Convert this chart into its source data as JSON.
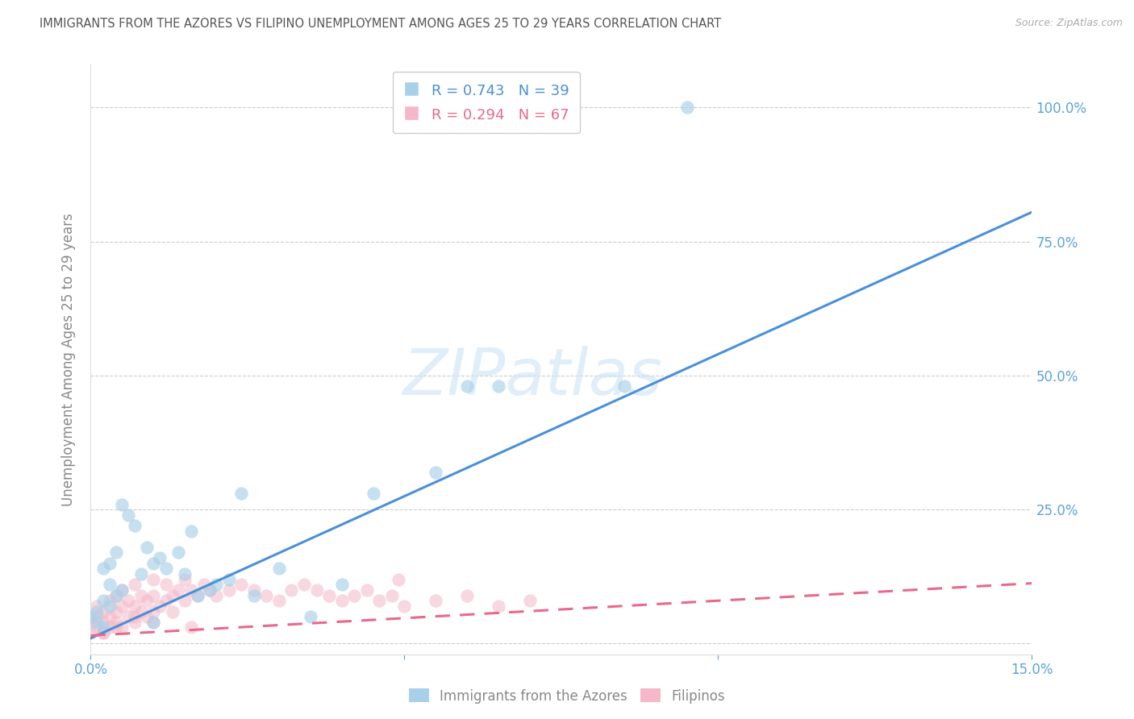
{
  "title": "IMMIGRANTS FROM THE AZORES VS FILIPINO UNEMPLOYMENT AMONG AGES 25 TO 29 YEARS CORRELATION CHART",
  "source": "Source: ZipAtlas.com",
  "ylabel": "Unemployment Among Ages 25 to 29 years",
  "watermark": "ZIPatlas",
  "legend1_label": "Immigrants from the Azores",
  "legend2_label": "Filipinos",
  "legend1_R": "R = 0.743",
  "legend1_N": "N = 39",
  "legend2_R": "R = 0.294",
  "legend2_N": "N = 67",
  "ytick_values": [
    0.0,
    0.25,
    0.5,
    0.75,
    1.0
  ],
  "ytick_labels_right": [
    "",
    "25.0%",
    "50.0%",
    "75.0%",
    "100.0%"
  ],
  "xlim": [
    0.0,
    0.15
  ],
  "ylim": [
    -0.02,
    1.08
  ],
  "blue_color": "#a8d0e8",
  "blue_line_color": "#4a90d9",
  "pink_color": "#f4b8c8",
  "pink_line_color": "#e8698a",
  "title_color": "#555555",
  "axis_label_color": "#888888",
  "tick_color": "#5ba3d9",
  "grid_color": "#cccccc",
  "blue_line_slope": 5.3,
  "blue_line_intercept": 0.01,
  "pink_line_slope": 0.65,
  "pink_line_intercept": 0.015,
  "azores_x": [
    0.0,
    0.001,
    0.001,
    0.002,
    0.002,
    0.002,
    0.003,
    0.003,
    0.003,
    0.004,
    0.004,
    0.005,
    0.005,
    0.006,
    0.007,
    0.008,
    0.009,
    0.01,
    0.01,
    0.011,
    0.012,
    0.014,
    0.015,
    0.016,
    0.017,
    0.019,
    0.02,
    0.022,
    0.024,
    0.026,
    0.03,
    0.035,
    0.04,
    0.045,
    0.055,
    0.06,
    0.065,
    0.085,
    0.095
  ],
  "azores_y": [
    0.05,
    0.04,
    0.06,
    0.03,
    0.08,
    0.14,
    0.07,
    0.11,
    0.15,
    0.09,
    0.17,
    0.1,
    0.26,
    0.24,
    0.22,
    0.13,
    0.18,
    0.15,
    0.04,
    0.16,
    0.14,
    0.17,
    0.13,
    0.21,
    0.09,
    0.1,
    0.11,
    0.12,
    0.28,
    0.09,
    0.14,
    0.05,
    0.11,
    0.28,
    0.32,
    0.48,
    0.48,
    0.48,
    1.0
  ],
  "filipino_x": [
    0.0,
    0.0,
    0.001,
    0.001,
    0.001,
    0.002,
    0.002,
    0.002,
    0.003,
    0.003,
    0.003,
    0.004,
    0.004,
    0.004,
    0.005,
    0.005,
    0.005,
    0.006,
    0.006,
    0.007,
    0.007,
    0.007,
    0.008,
    0.008,
    0.009,
    0.009,
    0.01,
    0.01,
    0.01,
    0.011,
    0.012,
    0.012,
    0.013,
    0.014,
    0.015,
    0.015,
    0.016,
    0.017,
    0.018,
    0.019,
    0.02,
    0.022,
    0.024,
    0.026,
    0.028,
    0.03,
    0.032,
    0.034,
    0.036,
    0.038,
    0.04,
    0.042,
    0.044,
    0.046,
    0.048,
    0.05,
    0.055,
    0.06,
    0.065,
    0.07,
    0.002,
    0.004,
    0.007,
    0.01,
    0.013,
    0.016,
    0.049
  ],
  "filipino_y": [
    0.02,
    0.04,
    0.03,
    0.05,
    0.07,
    0.02,
    0.04,
    0.06,
    0.03,
    0.05,
    0.08,
    0.04,
    0.06,
    0.09,
    0.03,
    0.07,
    0.1,
    0.05,
    0.08,
    0.04,
    0.07,
    0.11,
    0.06,
    0.09,
    0.05,
    0.08,
    0.06,
    0.09,
    0.12,
    0.07,
    0.08,
    0.11,
    0.09,
    0.1,
    0.08,
    0.12,
    0.1,
    0.09,
    0.11,
    0.1,
    0.09,
    0.1,
    0.11,
    0.1,
    0.09,
    0.08,
    0.1,
    0.11,
    0.1,
    0.09,
    0.08,
    0.09,
    0.1,
    0.08,
    0.09,
    0.07,
    0.08,
    0.09,
    0.07,
    0.08,
    0.02,
    0.03,
    0.05,
    0.04,
    0.06,
    0.03,
    0.12
  ]
}
